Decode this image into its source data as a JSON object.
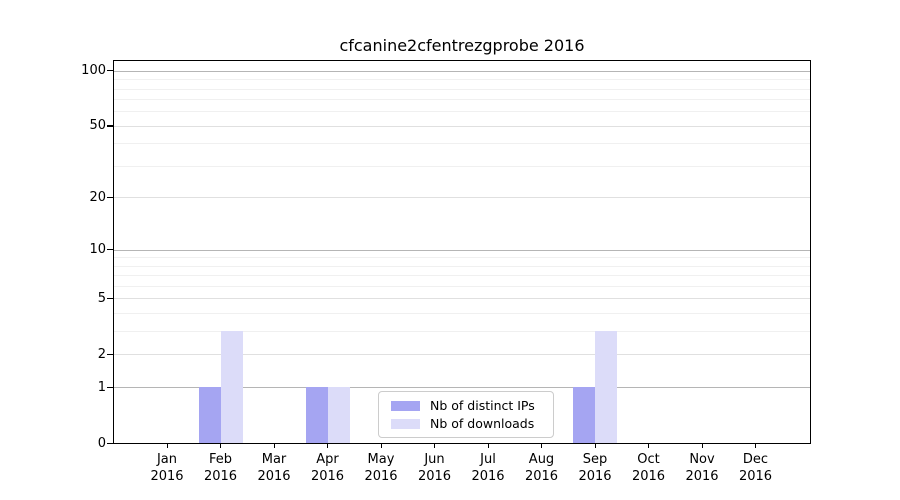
{
  "title": "cfcanine2cfentrezgprobe 2016",
  "colors": {
    "bar_ips": "#a5a5f2",
    "bar_downloads": "#dcdcf9",
    "grid_decade": "#b5b5b5",
    "grid_labeled": "#e0e0e0",
    "grid_minor": "#f0f0f0",
    "axis": "#000000",
    "legend_border": "#cccccc"
  },
  "legend": {
    "items": [
      {
        "label": "Nb of distinct IPs",
        "color_key": "bar_ips"
      },
      {
        "label": "Nb of downloads",
        "color_key": "bar_downloads"
      }
    ]
  },
  "chart_data": {
    "type": "bar",
    "title": "cfcanine2cfentrezgprobe 2016",
    "categories": [
      "Jan",
      "Feb",
      "Mar",
      "Apr",
      "May",
      "Jun",
      "Jul",
      "Aug",
      "Sep",
      "Oct",
      "Nov",
      "Dec"
    ],
    "year_label": "2016",
    "series": [
      {
        "name": "Nb of distinct IPs",
        "color_key": "bar_ips",
        "values": [
          0,
          1,
          0,
          1,
          0,
          0,
          0,
          0,
          1,
          0,
          0,
          0
        ]
      },
      {
        "name": "Nb of downloads",
        "color_key": "bar_downloads",
        "values": [
          0,
          3,
          0,
          1,
          0,
          0,
          0,
          0,
          3,
          0,
          0,
          0
        ]
      }
    ],
    "xlabel": "",
    "ylabel": "",
    "y_scale": "log10(1+y)",
    "ylim": [
      0,
      113
    ],
    "y_ticks": [
      0,
      1,
      2,
      5,
      10,
      20,
      50,
      100
    ],
    "y_decade_ticks": [
      1,
      10,
      100
    ],
    "y_minor_ticks": [
      3,
      4,
      6,
      7,
      8,
      9,
      30,
      40,
      60,
      70,
      80,
      90
    ],
    "grid": true,
    "legend_position": "lower center"
  }
}
